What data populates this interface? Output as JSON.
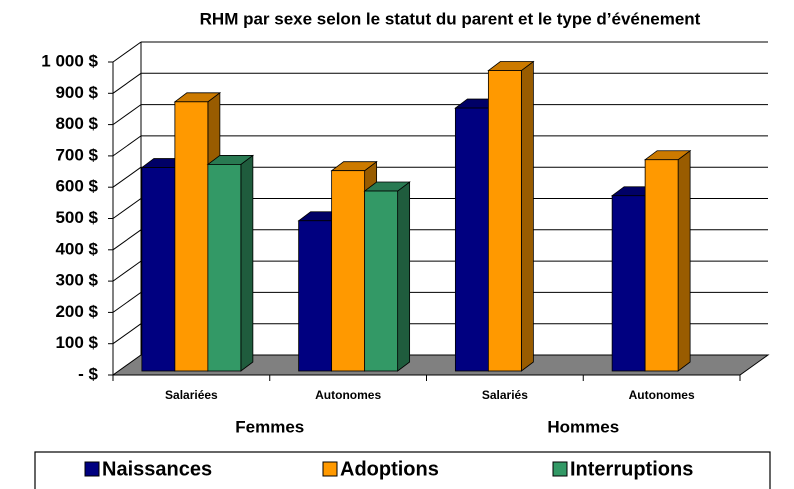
{
  "chart_data": {
    "type": "bar3d",
    "title": "RHM par sexe selon le statut du parent et le type d’événement",
    "categories": [
      "Salariées",
      "Autonomes",
      "Salariés",
      "Autonomes"
    ],
    "groups": [
      "Femmes",
      "Hommes"
    ],
    "series": [
      {
        "name": "Naissances",
        "color": "#000080",
        "values": [
          650,
          480,
          840,
          560
        ]
      },
      {
        "name": "Adoptions",
        "color": "#FF9900",
        "values": [
          860,
          640,
          960,
          675
        ]
      },
      {
        "name": "Interruptions",
        "color": "#339966",
        "values": [
          660,
          575,
          null,
          null
        ]
      }
    ],
    "ylim": [
      0,
      1000
    ],
    "yticks": [
      {
        "value": 0,
        "label": "-       $"
      },
      {
        "value": 100,
        "label": "100 $"
      },
      {
        "value": 200,
        "label": "200 $"
      },
      {
        "value": 300,
        "label": "300 $"
      },
      {
        "value": 400,
        "label": "400 $"
      },
      {
        "value": 500,
        "label": "500 $"
      },
      {
        "value": 600,
        "label": "600 $"
      },
      {
        "value": 700,
        "label": "700 $"
      },
      {
        "value": 800,
        "label": "800 $"
      },
      {
        "value": 900,
        "label": "900 $"
      },
      {
        "value": 1000,
        "label": "1 000 $"
      }
    ],
    "grid": true
  }
}
